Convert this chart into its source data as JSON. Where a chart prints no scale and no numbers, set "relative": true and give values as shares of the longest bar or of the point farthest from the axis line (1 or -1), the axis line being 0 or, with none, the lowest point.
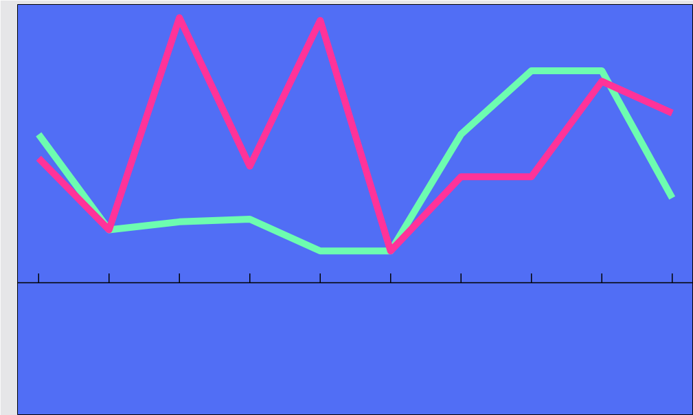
{
  "chart_data": {
    "type": "line",
    "relative": true,
    "categories": [
      null,
      null,
      null,
      null,
      null,
      null,
      null,
      null,
      null,
      null
    ],
    "series": [
      {
        "color": "#6dfcb0",
        "values": [
          0.56,
          0.2,
          0.23,
          0.24,
          0.12,
          0.12,
          0.56,
          0.8,
          0.8,
          0.32
        ]
      },
      {
        "color": "#ff3399",
        "values": [
          0.47,
          0.2,
          1.0,
          0.44,
          0.99,
          0.12,
          0.4,
          0.4,
          0.76,
          0.64
        ]
      }
    ],
    "grid": false,
    "marker": "none",
    "line_style": "solid"
  }
}
